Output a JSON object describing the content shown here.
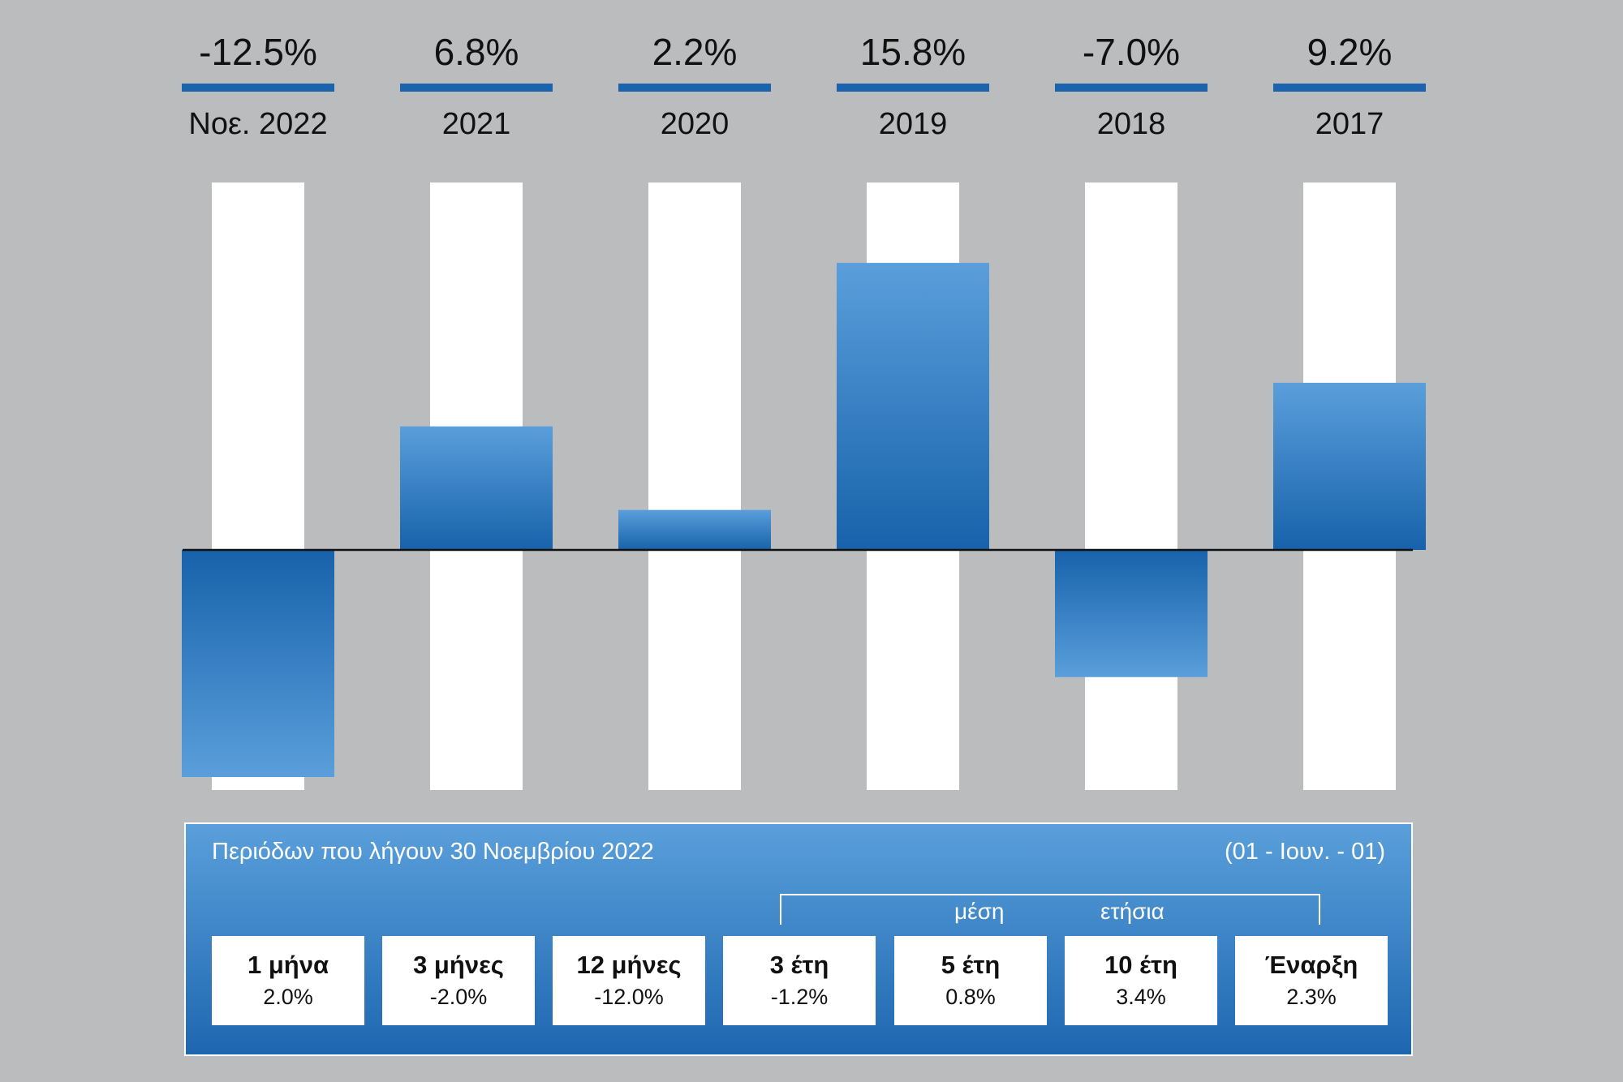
{
  "chart_data": {
    "type": "bar",
    "categories": [
      "Νοε. 2022",
      "2021",
      "2020",
      "2019",
      "2018",
      "2017"
    ],
    "values": [
      -12.5,
      6.8,
      2.2,
      15.8,
      -7.0,
      9.2
    ],
    "value_labels": [
      "-12.5%",
      "6.8%",
      "2.2%",
      "15.8%",
      "-7.0%",
      "9.2%"
    ],
    "ylim": [
      -15,
      12
    ],
    "grid": false,
    "legend": "none",
    "colors": {
      "bar_light": "#5a9fdb",
      "bar_dark": "#1762ab",
      "accent_rule": "#1b63ad",
      "background_column": "#ffffff",
      "background": "#bbbcbe"
    }
  },
  "returns_panel": {
    "title": "Περιόδων που λήγουν 30 Νοεμβρίου 2022",
    "period_note": "(01 - Ιουν. - 01)",
    "average_label_1": "μέση",
    "average_label_2": "ετήσια",
    "items": [
      {
        "period": "1 μήνα",
        "value": "2.0%"
      },
      {
        "period": "3 μήνες",
        "value": "-2.0%"
      },
      {
        "period": "12 μήνες",
        "value": "-12.0%"
      },
      {
        "period": "3 έτη",
        "value": "-1.2%"
      },
      {
        "period": "5 έτη",
        "value": "0.8%"
      },
      {
        "period": "10 έτη",
        "value": "3.4%"
      },
      {
        "period": "Έναρξη",
        "value": "2.3%"
      }
    ]
  }
}
